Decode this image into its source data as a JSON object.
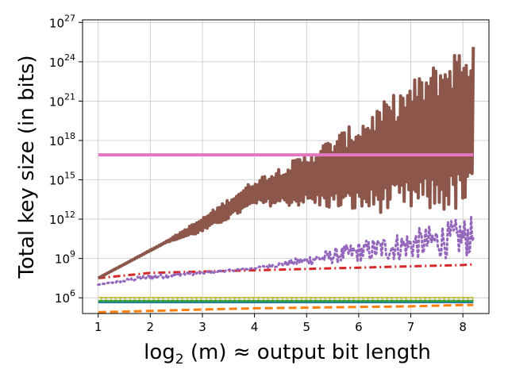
{
  "chart_data": {
    "type": "line",
    "title": "",
    "xlabel": "log2 (m) ≈ output bit length",
    "xlabel_parts": {
      "prefix": "log",
      "sub": "2",
      "mid": " (m) ≈ ",
      "suffix": " output bit length"
    },
    "ylabel": "Total key size (in bits)",
    "xlim": [
      0.7,
      8.5
    ],
    "ylim_log10": [
      4.8,
      27.2
    ],
    "yscale": "log",
    "grid": true,
    "x_ticks": [
      "1",
      "2",
      "3",
      "4",
      "5",
      "6",
      "7",
      "8"
    ],
    "y_ticks": [
      {
        "base": "10",
        "exp": "6"
      },
      {
        "base": "10",
        "exp": "9"
      },
      {
        "base": "10",
        "exp": "12"
      },
      {
        "base": "10",
        "exp": "15"
      },
      {
        "base": "10",
        "exp": "18"
      },
      {
        "base": "10",
        "exp": "21"
      },
      {
        "base": "10",
        "exp": "24"
      },
      {
        "base": "10",
        "exp": "27"
      }
    ],
    "series": [
      {
        "name": "orange-dashed",
        "color": "#ff7f0e",
        "style": "dashed",
        "points_log10": [
          [
            1,
            4.9
          ],
          [
            2,
            5.0
          ],
          [
            3,
            5.1
          ],
          [
            4,
            5.2
          ],
          [
            5,
            5.25
          ],
          [
            6,
            5.3
          ],
          [
            7,
            5.35
          ],
          [
            8,
            5.45
          ],
          [
            8.2,
            5.45
          ]
        ]
      },
      {
        "name": "blue-solid",
        "color": "#1f77b4",
        "style": "solid",
        "points_log10": [
          [
            1,
            5.7
          ],
          [
            8.2,
            5.7
          ]
        ]
      },
      {
        "name": "green-solid",
        "color": "#2ca02c",
        "style": "solid",
        "points_log10": [
          [
            1,
            5.8
          ],
          [
            8.2,
            5.8
          ]
        ]
      },
      {
        "name": "olive-solid",
        "color": "#bcbd22",
        "style": "solid",
        "points_log10": [
          [
            1,
            5.95
          ],
          [
            8.2,
            5.95
          ]
        ]
      },
      {
        "name": "gray-dotted",
        "color": "#e0e0e0",
        "style": "dotted",
        "points_log10": [
          [
            1,
            5.9
          ],
          [
            8.2,
            5.9
          ]
        ]
      },
      {
        "name": "red-dashdot",
        "color": "#d62728",
        "style": "dashdot",
        "points_log10": [
          [
            1,
            7.5
          ],
          [
            2,
            7.9
          ],
          [
            3,
            8.0
          ],
          [
            4,
            8.1
          ],
          [
            5,
            8.2
          ],
          [
            6,
            8.3
          ],
          [
            7,
            8.4
          ],
          [
            8,
            8.5
          ],
          [
            8.2,
            8.55
          ]
        ]
      },
      {
        "name": "pink-solid",
        "color": "#e377c2",
        "style": "solid",
        "points_log10": [
          [
            1,
            16.9
          ],
          [
            8.2,
            16.9
          ]
        ]
      }
    ],
    "purple_dotted": {
      "name": "purple-dotted",
      "color": "#9467bd",
      "style": "dotted",
      "x_start": 1,
      "x_end": 8.2,
      "steps": 340,
      "lower_log10": [
        [
          1,
          7.0
        ],
        [
          4,
          8.2
        ],
        [
          5,
          8.5
        ],
        [
          6,
          8.7
        ],
        [
          7,
          8.9
        ],
        [
          8.2,
          9.1
        ]
      ],
      "upper_log10": [
        [
          1,
          7.0
        ],
        [
          2,
          7.8
        ],
        [
          3,
          8.0
        ],
        [
          4,
          8.3
        ],
        [
          5,
          9.2
        ],
        [
          6,
          10.3
        ],
        [
          7,
          11.2
        ],
        [
          8.2,
          12.3
        ]
      ]
    },
    "brown_solid": {
      "name": "brown-solid",
      "color": "#8c564b",
      "style": "solid",
      "x_start": 1,
      "x_end": 8.2,
      "steps": 320,
      "lower_log10": [
        [
          1,
          7.5
        ],
        [
          2.3,
          10.2
        ],
        [
          3,
          11.0
        ],
        [
          4,
          13.0
        ],
        [
          5,
          13.0
        ],
        [
          6,
          12.5
        ],
        [
          7,
          12.5
        ],
        [
          8.2,
          12.5
        ]
      ],
      "upper_log10": [
        [
          1,
          7.5
        ],
        [
          2.3,
          10.3
        ],
        [
          3,
          12.1
        ],
        [
          4,
          15.0
        ],
        [
          5,
          17.0
        ],
        [
          6,
          19.5
        ],
        [
          7,
          22.5
        ],
        [
          8.2,
          26.0
        ]
      ]
    }
  }
}
